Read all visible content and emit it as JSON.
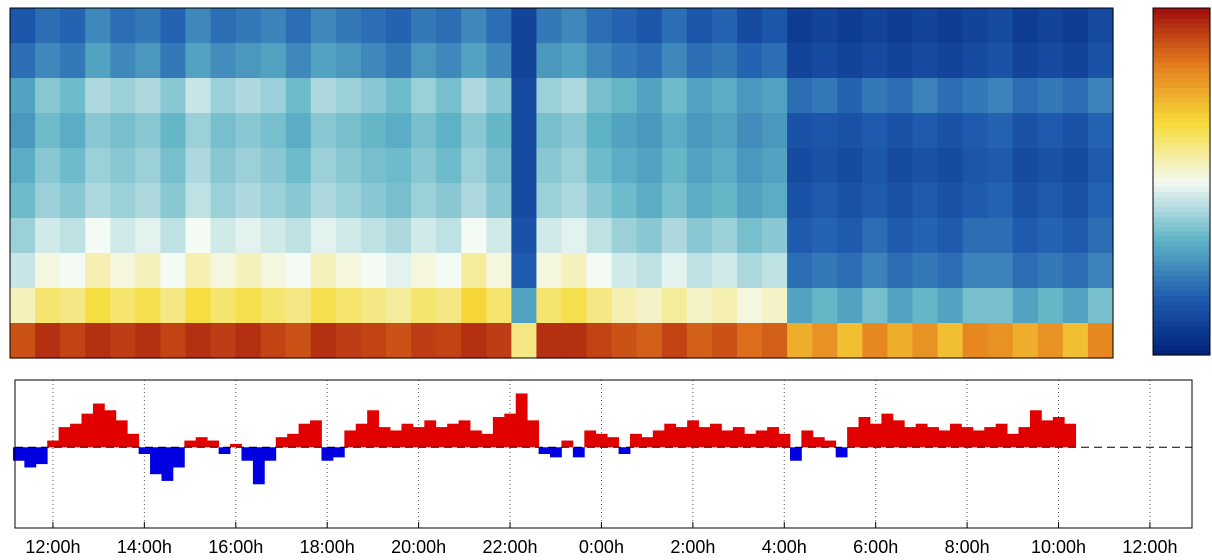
{
  "chart_data": [
    {
      "type": "heatmap",
      "clim": [
        0,
        1
      ],
      "colormap": [
        "#00207a",
        "#1f5cb0",
        "#5fb4c6",
        "#f4faf4",
        "#f6dc3a",
        "#e6801e",
        "#a00c0c"
      ],
      "values": [
        [
          0.15,
          0.2,
          0.18,
          0.25,
          0.2,
          0.22,
          0.18,
          0.25,
          0.2,
          0.22,
          0.24,
          0.2,
          0.25,
          0.22,
          0.2,
          0.18,
          0.22,
          0.2,
          0.25,
          0.2,
          0.1,
          0.22,
          0.25,
          0.2,
          0.18,
          0.15,
          0.2,
          0.15,
          0.18,
          0.12,
          0.15,
          0.08,
          0.1,
          0.08,
          0.1,
          0.08,
          0.1,
          0.08,
          0.1,
          0.12,
          0.08,
          0.1,
          0.08,
          0.12
        ],
        [
          0.2,
          0.25,
          0.22,
          0.3,
          0.25,
          0.28,
          0.22,
          0.3,
          0.26,
          0.28,
          0.3,
          0.25,
          0.3,
          0.28,
          0.25,
          0.22,
          0.28,
          0.25,
          0.3,
          0.25,
          0.1,
          0.28,
          0.3,
          0.25,
          0.22,
          0.2,
          0.25,
          0.2,
          0.22,
          0.18,
          0.2,
          0.1,
          0.12,
          0.1,
          0.12,
          0.1,
          0.12,
          0.1,
          0.12,
          0.14,
          0.1,
          0.12,
          0.1,
          0.14
        ],
        [
          0.3,
          0.38,
          0.35,
          0.42,
          0.4,
          0.42,
          0.38,
          0.45,
          0.4,
          0.42,
          0.4,
          0.35,
          0.42,
          0.4,
          0.38,
          0.35,
          0.4,
          0.36,
          0.42,
          0.38,
          0.12,
          0.4,
          0.42,
          0.36,
          0.34,
          0.3,
          0.35,
          0.3,
          0.32,
          0.28,
          0.3,
          0.2,
          0.22,
          0.18,
          0.22,
          0.2,
          0.24,
          0.2,
          0.22,
          0.24,
          0.2,
          0.22,
          0.2,
          0.24
        ],
        [
          0.28,
          0.35,
          0.32,
          0.38,
          0.36,
          0.38,
          0.34,
          0.4,
          0.36,
          0.38,
          0.36,
          0.32,
          0.38,
          0.36,
          0.34,
          0.32,
          0.36,
          0.33,
          0.38,
          0.34,
          0.12,
          0.36,
          0.38,
          0.33,
          0.3,
          0.28,
          0.32,
          0.28,
          0.3,
          0.26,
          0.28,
          0.14,
          0.15,
          0.14,
          0.16,
          0.14,
          0.16,
          0.14,
          0.16,
          0.18,
          0.14,
          0.16,
          0.14,
          0.18
        ],
        [
          0.32,
          0.38,
          0.35,
          0.4,
          0.38,
          0.4,
          0.36,
          0.42,
          0.38,
          0.4,
          0.38,
          0.35,
          0.4,
          0.38,
          0.36,
          0.35,
          0.38,
          0.35,
          0.4,
          0.36,
          0.12,
          0.38,
          0.4,
          0.35,
          0.32,
          0.3,
          0.34,
          0.3,
          0.32,
          0.28,
          0.3,
          0.12,
          0.14,
          0.12,
          0.15,
          0.12,
          0.14,
          0.12,
          0.15,
          0.16,
          0.12,
          0.14,
          0.12,
          0.16
        ],
        [
          0.35,
          0.4,
          0.38,
          0.42,
          0.4,
          0.42,
          0.38,
          0.44,
          0.4,
          0.42,
          0.4,
          0.38,
          0.42,
          0.4,
          0.38,
          0.36,
          0.4,
          0.38,
          0.42,
          0.38,
          0.12,
          0.4,
          0.42,
          0.38,
          0.35,
          0.32,
          0.36,
          0.32,
          0.34,
          0.3,
          0.32,
          0.14,
          0.16,
          0.14,
          0.16,
          0.14,
          0.16,
          0.14,
          0.16,
          0.18,
          0.14,
          0.16,
          0.14,
          0.18
        ],
        [
          0.4,
          0.46,
          0.44,
          0.5,
          0.46,
          0.48,
          0.44,
          0.5,
          0.46,
          0.48,
          0.46,
          0.44,
          0.48,
          0.46,
          0.44,
          0.42,
          0.46,
          0.44,
          0.5,
          0.46,
          0.14,
          0.46,
          0.48,
          0.44,
          0.4,
          0.38,
          0.42,
          0.38,
          0.4,
          0.36,
          0.38,
          0.16,
          0.18,
          0.16,
          0.2,
          0.16,
          0.18,
          0.16,
          0.2,
          0.2,
          0.16,
          0.18,
          0.16,
          0.2
        ],
        [
          0.45,
          0.52,
          0.5,
          0.56,
          0.52,
          0.55,
          0.5,
          0.56,
          0.52,
          0.55,
          0.52,
          0.5,
          0.55,
          0.52,
          0.5,
          0.48,
          0.52,
          0.5,
          0.58,
          0.52,
          0.16,
          0.52,
          0.55,
          0.5,
          0.46,
          0.44,
          0.48,
          0.44,
          0.46,
          0.42,
          0.44,
          0.2,
          0.22,
          0.2,
          0.24,
          0.2,
          0.22,
          0.2,
          0.24,
          0.24,
          0.2,
          0.22,
          0.2,
          0.24
        ],
        [
          0.55,
          0.62,
          0.6,
          0.66,
          0.62,
          0.65,
          0.6,
          0.66,
          0.62,
          0.65,
          0.62,
          0.6,
          0.65,
          0.62,
          0.6,
          0.58,
          0.62,
          0.6,
          0.68,
          0.62,
          0.3,
          0.62,
          0.65,
          0.6,
          0.56,
          0.54,
          0.58,
          0.54,
          0.56,
          0.52,
          0.54,
          0.3,
          0.34,
          0.3,
          0.36,
          0.3,
          0.34,
          0.3,
          0.36,
          0.36,
          0.3,
          0.34,
          0.3,
          0.36
        ],
        [
          0.9,
          0.95,
          0.92,
          0.95,
          0.93,
          0.95,
          0.92,
          0.95,
          0.93,
          0.95,
          0.92,
          0.9,
          0.95,
          0.93,
          0.92,
          0.9,
          0.93,
          0.92,
          0.95,
          0.93,
          0.6,
          0.95,
          0.95,
          0.92,
          0.9,
          0.88,
          0.92,
          0.88,
          0.9,
          0.86,
          0.88,
          0.75,
          0.8,
          0.72,
          0.82,
          0.75,
          0.8,
          0.72,
          0.82,
          0.8,
          0.75,
          0.8,
          0.72,
          0.82
        ]
      ]
    },
    {
      "type": "diverging-area",
      "positive_color": "#e00000",
      "negative_color": "#0000e0",
      "grid": true,
      "xlim": [
        11.17,
        36.92
      ],
      "ylim": [
        -1.2,
        1.0
      ],
      "xticks": [
        {
          "value": 12,
          "label": "12:00h"
        },
        {
          "value": 14,
          "label": "14:00h"
        },
        {
          "value": 16,
          "label": "16:00h"
        },
        {
          "value": 18,
          "label": "18:00h"
        },
        {
          "value": 20,
          "label": "20:00h"
        },
        {
          "value": 22,
          "label": "22:00h"
        },
        {
          "value": 24,
          "label": "0:00h"
        },
        {
          "value": 26,
          "label": "2:00h"
        },
        {
          "value": 28,
          "label": "4:00h"
        },
        {
          "value": 30,
          "label": "6:00h"
        },
        {
          "value": 32,
          "label": "8:00h"
        },
        {
          "value": 34,
          "label": "10:00h"
        },
        {
          "value": 36,
          "label": "12:00h"
        }
      ],
      "x": [
        11.25,
        11.5,
        11.75,
        12,
        12.25,
        12.5,
        12.75,
        13,
        13.25,
        13.5,
        13.75,
        14,
        14.25,
        14.5,
        14.75,
        15,
        15.25,
        15.5,
        15.75,
        16,
        16.25,
        16.5,
        16.75,
        17,
        17.25,
        17.5,
        17.75,
        18,
        18.25,
        18.5,
        18.75,
        19,
        19.25,
        19.5,
        19.75,
        20,
        20.25,
        20.5,
        20.75,
        21,
        21.25,
        21.5,
        21.75,
        22,
        22.25,
        22.5,
        22.75,
        23,
        23.25,
        23.5,
        23.75,
        24,
        24.25,
        24.5,
        24.75,
        25,
        25.25,
        25.5,
        25.75,
        26,
        26.25,
        26.5,
        26.75,
        27,
        27.25,
        27.5,
        27.75,
        28,
        28.25,
        28.5,
        28.75,
        29,
        29.25,
        29.5,
        29.75,
        30,
        30.25,
        30.5,
        30.75,
        31,
        31.25,
        31.5,
        31.75,
        32,
        32.25,
        32.5,
        32.75,
        33,
        33.25,
        33.5,
        33.75,
        34,
        34.25
      ],
      "values": [
        -0.2,
        -0.3,
        -0.25,
        0.1,
        0.3,
        0.35,
        0.5,
        0.65,
        0.55,
        0.4,
        0.2,
        -0.1,
        -0.4,
        -0.5,
        -0.3,
        0.1,
        0.15,
        0.1,
        -0.1,
        0.05,
        -0.2,
        -0.55,
        -0.2,
        0.15,
        0.2,
        0.35,
        0.4,
        -0.2,
        -0.15,
        0.25,
        0.35,
        0.55,
        0.3,
        0.25,
        0.35,
        0.3,
        0.4,
        0.3,
        0.35,
        0.4,
        0.25,
        0.2,
        0.45,
        0.5,
        0.8,
        0.4,
        -0.1,
        -0.15,
        0.1,
        -0.15,
        0.25,
        0.2,
        0.15,
        -0.1,
        0.2,
        0.15,
        0.25,
        0.35,
        0.3,
        0.4,
        0.3,
        0.35,
        0.25,
        0.3,
        0.2,
        0.25,
        0.3,
        0.2,
        -0.2,
        0.25,
        0.15,
        0.1,
        -0.15,
        0.3,
        0.45,
        0.35,
        0.5,
        0.4,
        0.3,
        0.35,
        0.3,
        0.25,
        0.35,
        0.3,
        0.25,
        0.3,
        0.35,
        0.2,
        0.3,
        0.55,
        0.4,
        0.45,
        0.35
      ]
    }
  ]
}
